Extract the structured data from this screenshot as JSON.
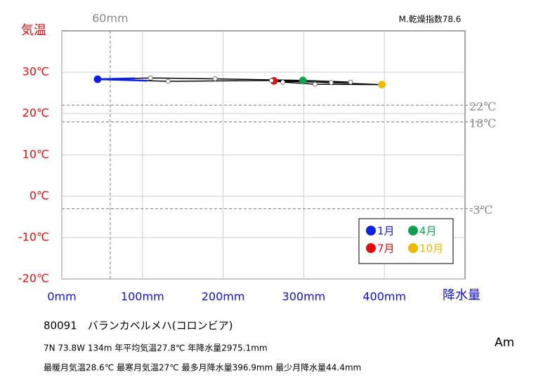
{
  "chart_data": {
    "type": "climograph",
    "index_label": "M.乾燥指数78.6",
    "y_axis_label": "気温",
    "x_axis_label": "降水量",
    "xlim": [
      0,
      500
    ],
    "ylim": [
      -20,
      40
    ],
    "xticks": [
      {
        "value": 0,
        "label": "0mm"
      },
      {
        "value": 100,
        "label": "100mm"
      },
      {
        "value": 200,
        "label": "200mm"
      },
      {
        "value": 300,
        "label": "300mm"
      },
      {
        "value": 400,
        "label": "400mm"
      }
    ],
    "yticks": [
      {
        "value": 30,
        "label": "30℃"
      },
      {
        "value": 20,
        "label": "20℃"
      },
      {
        "value": 10,
        "label": "10℃"
      },
      {
        "value": 0,
        "label": "0℃"
      },
      {
        "value": -10,
        "label": "-10℃"
      },
      {
        "value": -20,
        "label": "-20℃"
      }
    ],
    "x_reference_lines": [
      {
        "value": 60,
        "label": "60mm"
      }
    ],
    "y_reference_lines": [
      {
        "value": 22,
        "label": "22℃"
      },
      {
        "value": 18,
        "label": "18℃"
      },
      {
        "value": -3,
        "label": "-3℃"
      }
    ],
    "grid": true,
    "line_color": "#000000",
    "highlight_color": "#1020e0",
    "precipitation": [
      44.4,
      110,
      190,
      299,
      358,
      334,
      263,
      274,
      314,
      396.9,
      260,
      131.8
    ],
    "temperature": [
      28.3,
      28.6,
      28.4,
      28.0,
      27.6,
      27.5,
      27.9,
      27.6,
      27.1,
      27.0,
      28.0,
      27.8
    ],
    "point_colors": [
      "#1020e0",
      "#ffffff",
      "#ffffff",
      "#10a050",
      "#ffffff",
      "#ffffff",
      "#e01010",
      "#ffffff",
      "#ffffff",
      "#f0b800",
      "#ffffff",
      "#ffffff"
    ],
    "legend": [
      {
        "name": "1月",
        "color": "#1020e0"
      },
      {
        "name": "4月",
        "color": "#10a050"
      },
      {
        "name": "7月",
        "color": "#e01010"
      },
      {
        "name": "10月",
        "color": "#f0b800"
      }
    ]
  },
  "station": "80091　バランカベルメハ(コロンビア)",
  "info_line_1": "7N  73.8W 134m  年平均気温27.8℃ 年降水量2975.1mm",
  "info_line_2": "最暖月気温28.6℃ 最寒月気温27℃ 最多月降水量396.9mm 最少月降水量44.4mm",
  "climate_class": "Am"
}
